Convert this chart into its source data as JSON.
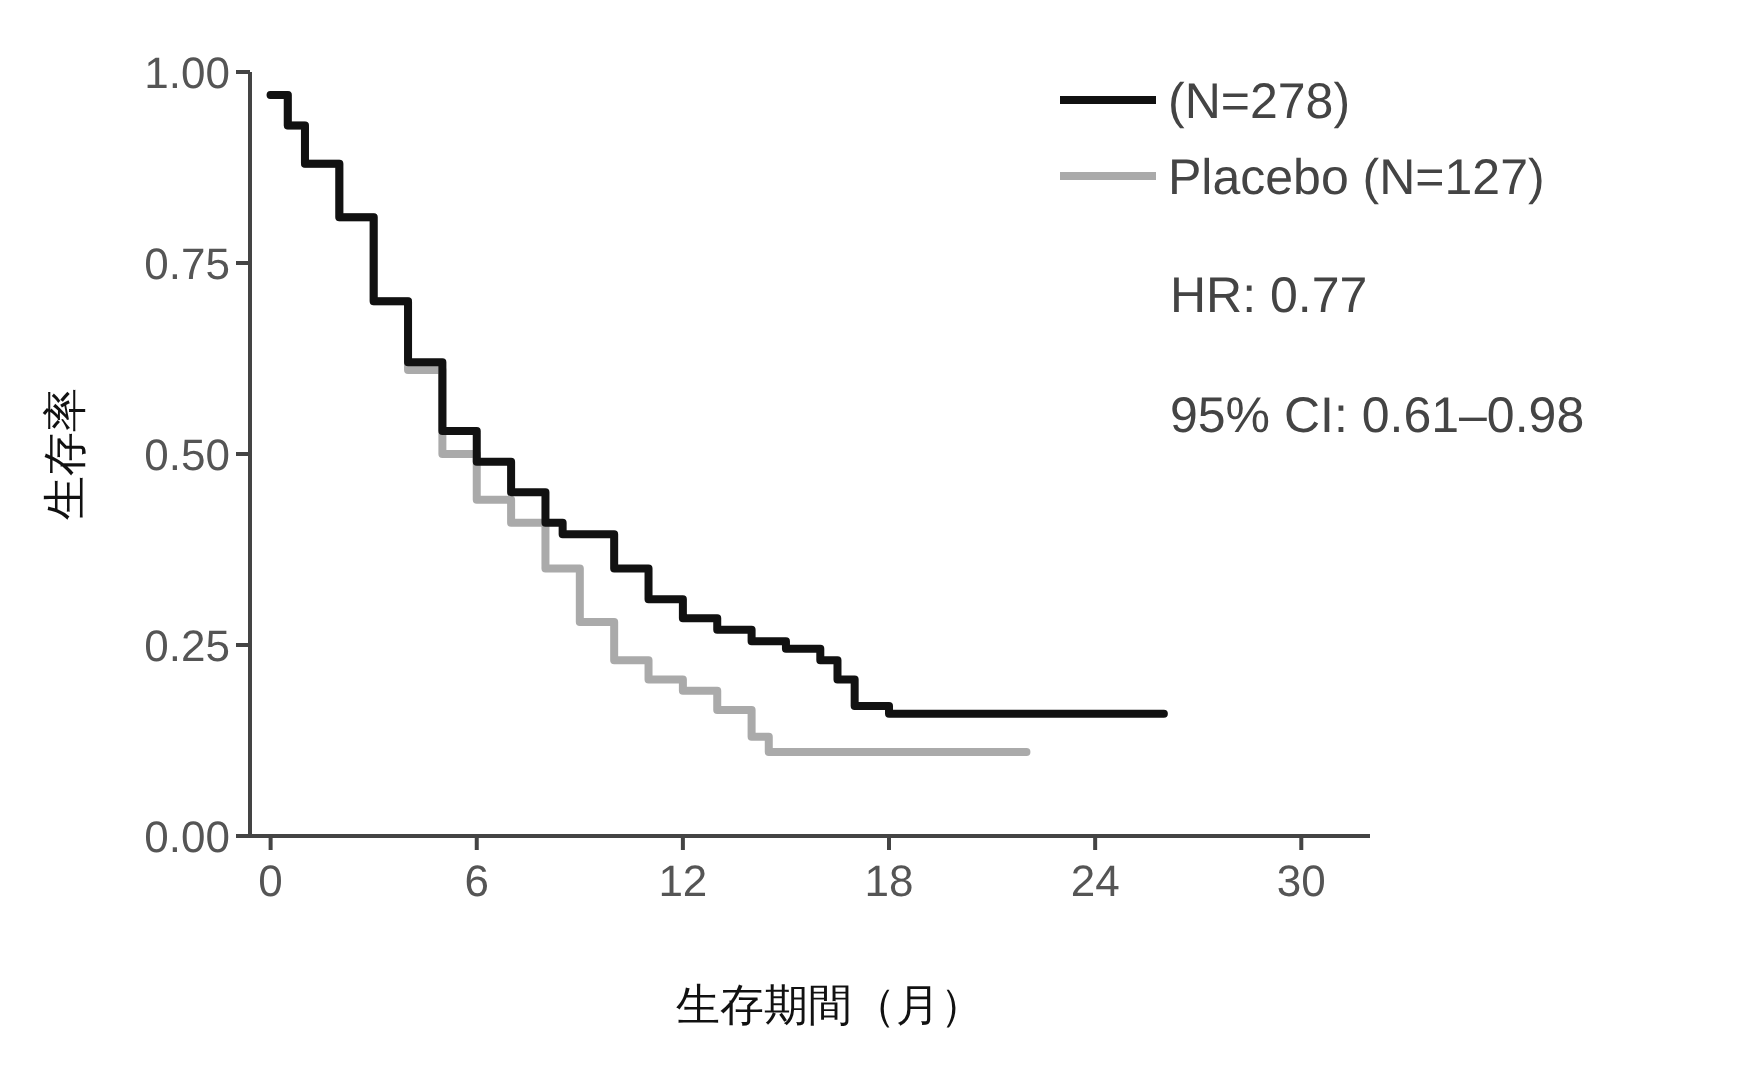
{
  "chart_data": {
    "type": "step",
    "xlabel": "生存期間（月）",
    "ylabel": "生存率",
    "xlim": [
      -0.6,
      32
    ],
    "xticks": [
      0,
      6,
      12,
      18,
      24,
      30
    ],
    "ylim": [
      0,
      1
    ],
    "yticks": [
      {
        "value": 0,
        "label": "0.00"
      },
      {
        "value": 0.25,
        "label": "0.25"
      },
      {
        "value": 0.5,
        "label": "0.50"
      },
      {
        "value": 0.75,
        "label": "0.75"
      },
      {
        "value": 1,
        "label": "1.00"
      }
    ],
    "grid": false,
    "legend": "top right",
    "line_style": "solid",
    "annotations": [
      "HR: 0.77",
      "95% CI: 0.61–0.98"
    ],
    "series": [
      {
        "name": "(N=278)",
        "color": "#111111",
        "x": [
          0,
          0.5,
          1,
          2,
          3,
          4,
          5,
          6,
          7,
          8,
          8.5,
          10,
          11,
          12,
          13,
          14,
          15,
          16,
          16.5,
          17,
          18,
          26
        ],
        "values": [
          0.97,
          0.93,
          0.88,
          0.81,
          0.7,
          0.62,
          0.53,
          0.49,
          0.45,
          0.41,
          0.395,
          0.35,
          0.31,
          0.285,
          0.27,
          0.255,
          0.245,
          0.23,
          0.205,
          0.17,
          0.16,
          0.16
        ]
      },
      {
        "name": "Placebo (N=127)",
        "color": "#aaaaaa",
        "x": [
          0,
          0.5,
          1,
          2,
          3,
          4,
          5,
          6,
          7,
          8,
          9,
          10,
          11,
          12,
          13,
          14,
          14.5,
          22
        ],
        "values": [
          0.97,
          0.93,
          0.88,
          0.81,
          0.7,
          0.61,
          0.5,
          0.44,
          0.41,
          0.35,
          0.28,
          0.23,
          0.205,
          0.19,
          0.165,
          0.13,
          0.11,
          0.11
        ]
      }
    ]
  }
}
